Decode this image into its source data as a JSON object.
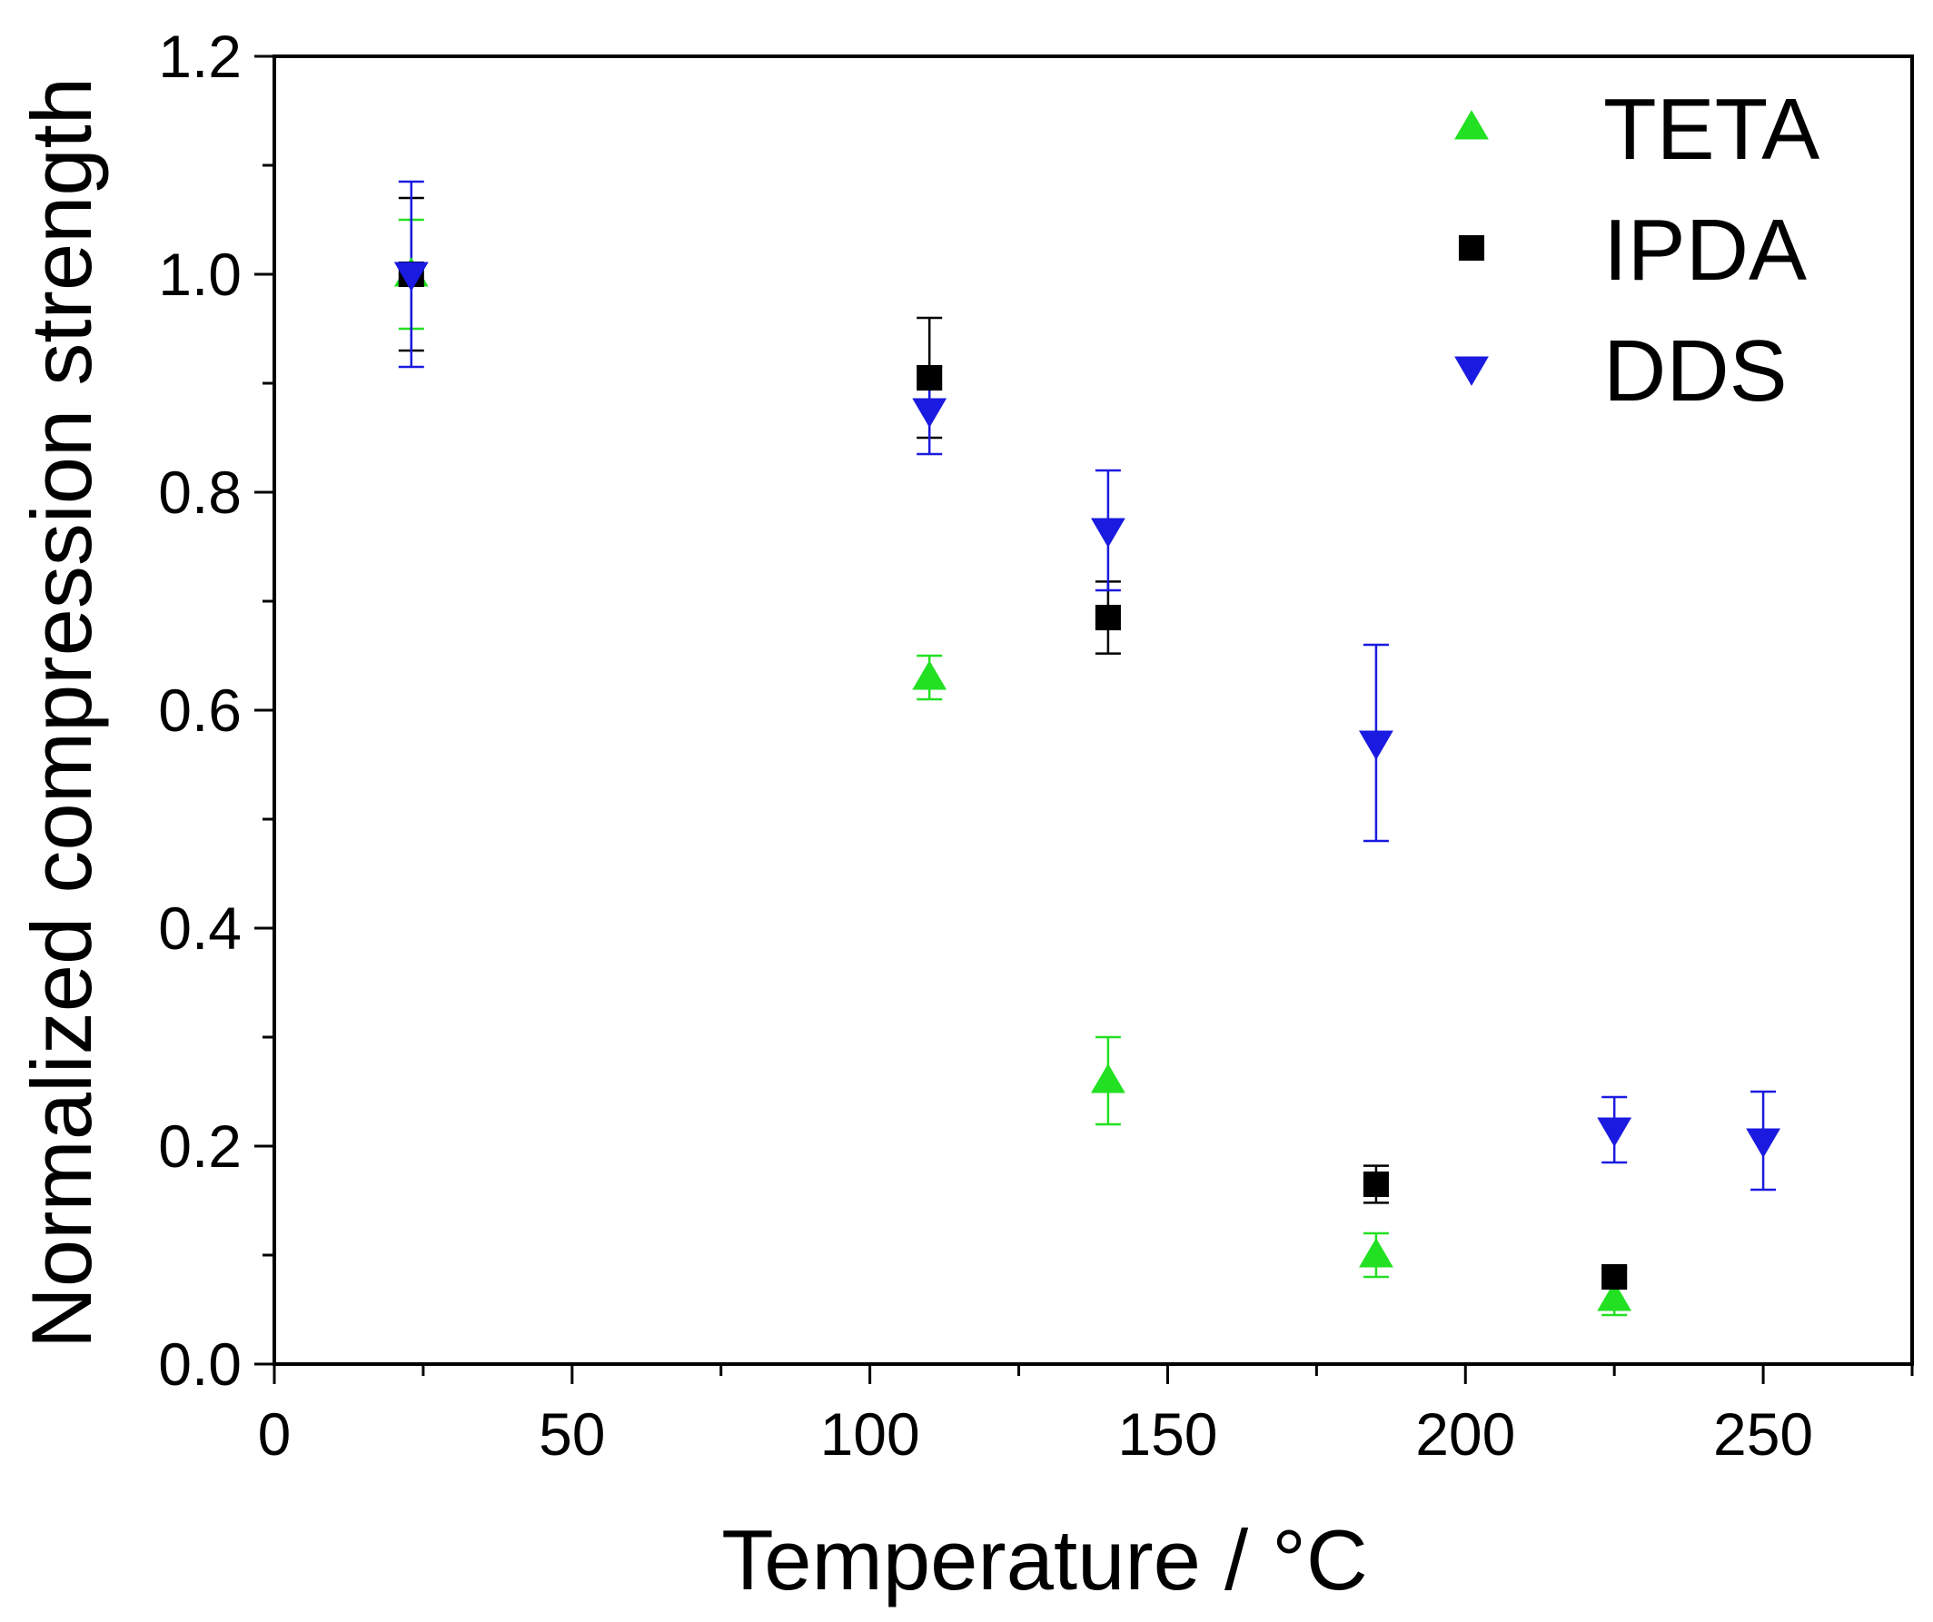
{
  "chart_data": {
    "type": "scatter",
    "title": "",
    "xlabel": "Temperature  /  °C",
    "ylabel": "Normalized compression strength",
    "xlim": [
      0,
      275
    ],
    "ylim": [
      0,
      1.2
    ],
    "x_ticks": [
      0,
      50,
      100,
      150,
      200,
      250
    ],
    "x_tick_labels": [
      "0",
      "50",
      "100",
      "150",
      "200",
      "250"
    ],
    "x_minor_step": 25,
    "y_ticks": [
      0,
      0.2,
      0.4,
      0.6,
      0.8,
      1.0,
      1.2
    ],
    "y_tick_labels": [
      "0.0",
      "0.2",
      "0.4",
      "0.6",
      "0.8",
      "1.0",
      "1.2"
    ],
    "y_minor_step": 0.1,
    "grid": false,
    "legend_position": "top-right",
    "series": [
      {
        "name": "TETA",
        "marker": "triangle-up",
        "color": "#22e022",
        "x": [
          23,
          110,
          140,
          185,
          225
        ],
        "y": [
          1.0,
          0.63,
          0.26,
          0.1,
          0.06
        ],
        "err": [
          0.05,
          0.02,
          0.04,
          0.02,
          0.015
        ]
      },
      {
        "name": "IPDA",
        "marker": "square",
        "color": "#000000",
        "x": [
          23,
          110,
          140,
          185,
          225
        ],
        "y": [
          1.0,
          0.905,
          0.685,
          0.165,
          0.08
        ],
        "err": [
          0.07,
          0.055,
          0.033,
          0.017,
          0.008
        ]
      },
      {
        "name": "DDS",
        "marker": "triangle-down",
        "color": "#1a1ae0",
        "x": [
          23,
          110,
          140,
          185,
          225,
          250
        ],
        "y": [
          1.0,
          0.875,
          0.765,
          0.57,
          0.215,
          0.205
        ],
        "err": [
          0.085,
          0.04,
          0.055,
          0.09,
          0.03,
          0.045
        ]
      }
    ]
  }
}
